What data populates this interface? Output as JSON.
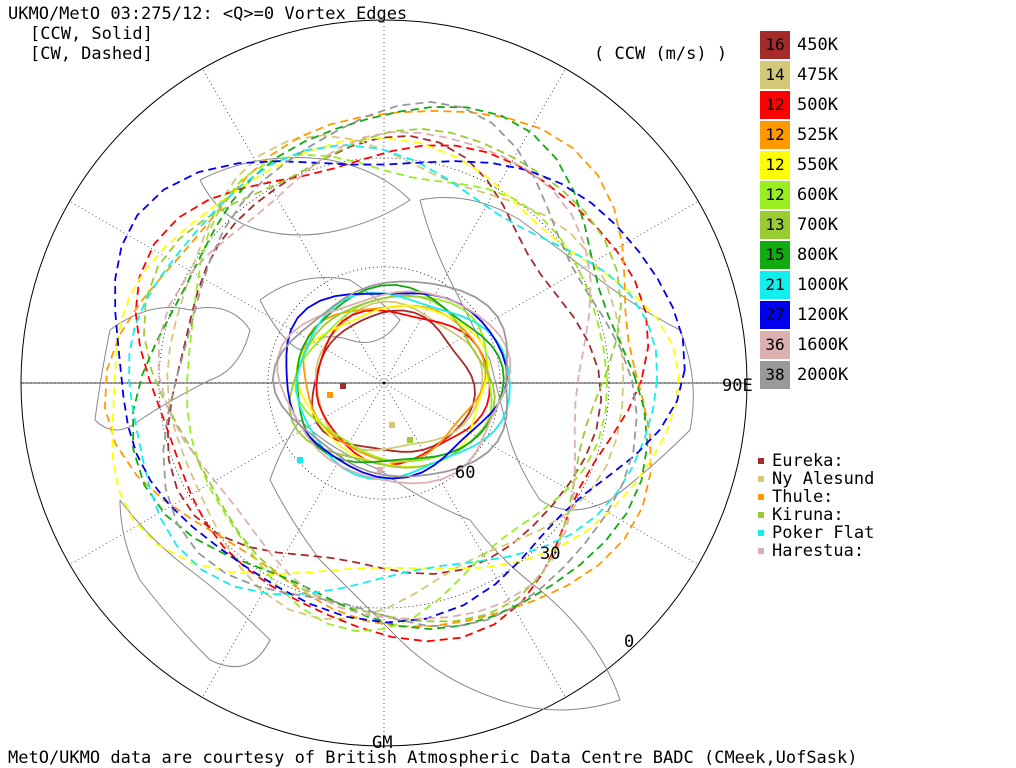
{
  "header": {
    "title": "UKMO/MetO 03:275/12: <Q>=0 Vortex Edges",
    "line1": "[CCW, Solid]",
    "line2": "[CW, Dashed]",
    "units": "( CCW (m/s) )"
  },
  "legend": [
    {
      "value": "16",
      "level": "450K",
      "color": "#a52a2a"
    },
    {
      "value": "14",
      "level": "475K",
      "color": "#d2c878"
    },
    {
      "value": "12",
      "level": "500K",
      "color": "#ff0000"
    },
    {
      "value": "12",
      "level": "525K",
      "color": "#ff9900"
    },
    {
      "value": "12",
      "level": "550K",
      "color": "#ffff00"
    },
    {
      "value": "12",
      "level": "600K",
      "color": "#99ee22"
    },
    {
      "value": "13",
      "level": "700K",
      "color": "#99cc33"
    },
    {
      "value": "15",
      "level": "800K",
      "color": "#11aa11"
    },
    {
      "value": "21",
      "level": "1000K",
      "color": "#11eeee"
    },
    {
      "value": "27",
      "level": "1200K",
      "color": "#0000ee"
    },
    {
      "value": "36",
      "level": "1600K",
      "color": "#ddb0b0"
    },
    {
      "value": "38",
      "level": "2000K",
      "color": "#999999"
    }
  ],
  "sites": [
    {
      "name": "Eureka:",
      "color": "#a52a2a"
    },
    {
      "name": "Ny Alesund",
      "color": "#d2c878"
    },
    {
      "name": "Thule:",
      "color": "#ff9900"
    },
    {
      "name": "Kiruna:",
      "color": "#99cc33"
    },
    {
      "name": "Poker Flat",
      "color": "#11eeee"
    },
    {
      "name": "Harestua:",
      "color": "#ddb0b0"
    }
  ],
  "map_labels": {
    "east": "90E",
    "lat60": "60",
    "lat30": "30",
    "lat0": "0",
    "gm": "GM"
  },
  "footer": {
    "credit": "MetO/UKMO data are courtesy of British Atmospheric Data Centre BADC (CMeek,UofSask)"
  }
}
